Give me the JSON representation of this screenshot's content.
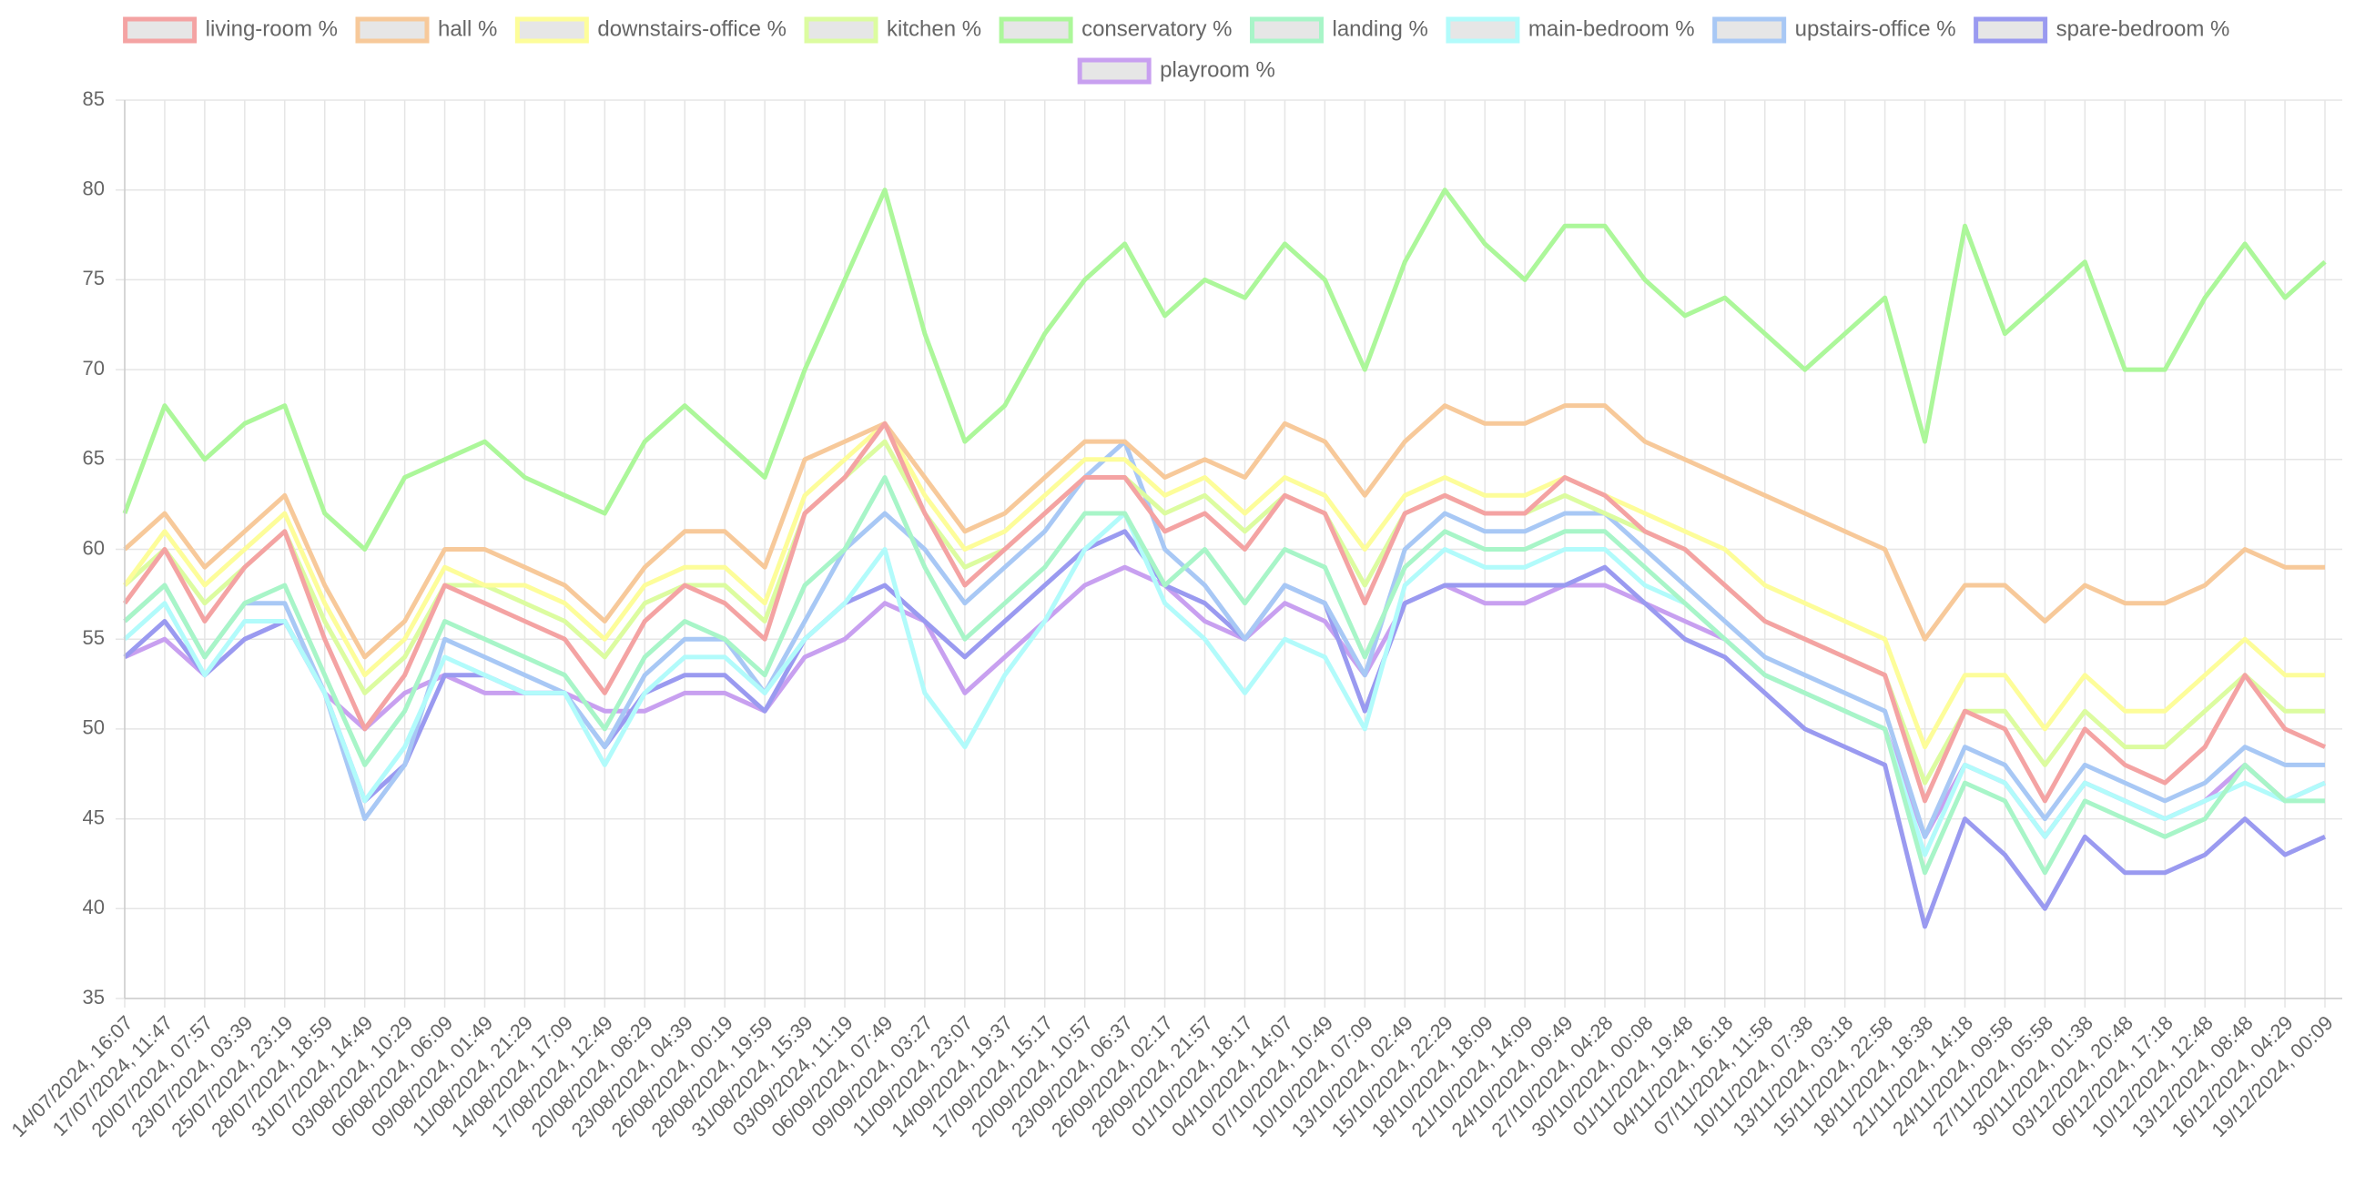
{
  "chart_data": {
    "type": "line",
    "categories": [
      "14/07/2024, 16:07",
      "17/07/2024, 11:47",
      "20/07/2024, 07:57",
      "23/07/2024, 03:39",
      "25/07/2024, 23:19",
      "28/07/2024, 18:59",
      "31/07/2024, 14:49",
      "03/08/2024, 10:29",
      "06/08/2024, 06:09",
      "09/08/2024, 01:49",
      "11/08/2024, 21:29",
      "14/08/2024, 17:09",
      "17/08/2024, 12:49",
      "20/08/2024, 08:29",
      "23/08/2024, 04:39",
      "26/08/2024, 00:19",
      "28/08/2024, 19:59",
      "31/08/2024, 15:39",
      "03/09/2024, 11:19",
      "06/09/2024, 07:49",
      "09/09/2024, 03:27",
      "11/09/2024, 23:07",
      "14/09/2024, 19:37",
      "17/09/2024, 15:17",
      "20/09/2024, 10:57",
      "23/09/2024, 06:37",
      "26/09/2024, 02:17",
      "28/09/2024, 21:57",
      "01/10/2024, 18:17",
      "04/10/2024, 14:07",
      "07/10/2024, 10:49",
      "10/10/2024, 07:09",
      "13/10/2024, 02:49",
      "15/10/2024, 22:29",
      "18/10/2024, 18:09",
      "21/10/2024, 14:09",
      "24/10/2024, 09:49",
      "27/10/2024, 04:28",
      "30/10/2024, 00:08",
      "01/11/2024, 19:48",
      "04/11/2024, 16:18",
      "07/11/2024, 11:58",
      "10/11/2024, 07:38",
      "13/11/2024, 03:18",
      "15/11/2024, 22:58",
      "18/11/2024, 18:38",
      "21/11/2024, 14:18",
      "24/11/2024, 09:58",
      "27/11/2024, 05:58",
      "30/11/2024, 01:38",
      "03/12/2024, 20:48",
      "06/12/2024, 17:18",
      "10/12/2024, 12:48",
      "13/12/2024, 08:48",
      "16/12/2024, 04:29",
      "19/12/2024, 00:09"
    ],
    "series": [
      {
        "name": "living-room %",
        "color": "#f4a3a3",
        "values": [
          57,
          60,
          56,
          59,
          61,
          55,
          50,
          53,
          58,
          57,
          56,
          55,
          52,
          56,
          58,
          57,
          55,
          62,
          64,
          67,
          62,
          58,
          60,
          62,
          64,
          64,
          61,
          62,
          60,
          63,
          62,
          57,
          62,
          63,
          62,
          62,
          64,
          63,
          61,
          60,
          58,
          56,
          55,
          54,
          53,
          46,
          51,
          50,
          46,
          50,
          48,
          47,
          49,
          53,
          50,
          49
        ]
      },
      {
        "name": "hall %",
        "color": "#f7c99a",
        "values": [
          60,
          62,
          59,
          61,
          63,
          58,
          54,
          56,
          60,
          60,
          59,
          58,
          56,
          59,
          61,
          61,
          59,
          65,
          66,
          67,
          64,
          61,
          62,
          64,
          66,
          66,
          64,
          65,
          64,
          67,
          66,
          63,
          66,
          68,
          67,
          67,
          68,
          68,
          66,
          65,
          64,
          63,
          62,
          61,
          60,
          55,
          58,
          58,
          56,
          58,
          57,
          57,
          58,
          60,
          59,
          59
        ]
      },
      {
        "name": "downstairs-office %",
        "color": "#fdfd9a",
        "values": [
          58,
          61,
          58,
          60,
          62,
          57,
          53,
          55,
          59,
          58,
          58,
          57,
          55,
          58,
          59,
          59,
          57,
          63,
          65,
          67,
          63,
          60,
          61,
          63,
          65,
          65,
          63,
          64,
          62,
          64,
          63,
          60,
          63,
          64,
          63,
          63,
          64,
          63,
          62,
          61,
          60,
          58,
          57,
          56,
          55,
          49,
          53,
          53,
          50,
          53,
          51,
          51,
          53,
          55,
          53,
          53
        ]
      },
      {
        "name": "kitchen %",
        "color": "#dcfca0",
        "values": [
          58,
          60,
          57,
          59,
          61,
          56,
          52,
          54,
          58,
          58,
          57,
          56,
          54,
          57,
          58,
          58,
          56,
          62,
          64,
          66,
          62,
          59,
          60,
          62,
          64,
          64,
          62,
          63,
          61,
          63,
          62,
          58,
          62,
          63,
          62,
          62,
          63,
          62,
          61,
          60,
          58,
          56,
          55,
          54,
          53,
          47,
          51,
          51,
          48,
          51,
          49,
          49,
          51,
          53,
          51,
          51
        ]
      },
      {
        "name": "conservatory %",
        "color": "#acf79a",
        "values": [
          62,
          68,
          65,
          67,
          68,
          62,
          60,
          64,
          65,
          66,
          64,
          63,
          62,
          66,
          68,
          66,
          64,
          70,
          75,
          80,
          72,
          66,
          68,
          72,
          75,
          77,
          73,
          75,
          74,
          77,
          75,
          70,
          76,
          80,
          77,
          75,
          78,
          78,
          75,
          73,
          74,
          72,
          70,
          72,
          74,
          66,
          78,
          72,
          74,
          76,
          70,
          70,
          74,
          77,
          74,
          76
        ]
      },
      {
        "name": "landing %",
        "color": "#a8f5c8",
        "values": [
          56,
          58,
          54,
          57,
          58,
          53,
          48,
          51,
          56,
          55,
          54,
          53,
          50,
          54,
          56,
          55,
          53,
          58,
          60,
          64,
          59,
          55,
          57,
          59,
          62,
          62,
          58,
          60,
          57,
          60,
          59,
          54,
          59,
          61,
          60,
          60,
          61,
          61,
          59,
          57,
          55,
          53,
          52,
          51,
          50,
          42,
          47,
          46,
          42,
          46,
          45,
          44,
          45,
          48,
          46,
          46
        ]
      },
      {
        "name": "main-bedroom %",
        "color": "#b2fbfb",
        "values": [
          55,
          57,
          53,
          56,
          56,
          52,
          46,
          49,
          54,
          53,
          52,
          52,
          48,
          52,
          54,
          54,
          52,
          55,
          57,
          60,
          52,
          49,
          53,
          56,
          60,
          62,
          57,
          55,
          52,
          55,
          54,
          50,
          58,
          60,
          59,
          59,
          60,
          60,
          58,
          57,
          55,
          53,
          52,
          51,
          50,
          43,
          48,
          47,
          44,
          47,
          46,
          45,
          46,
          47,
          46,
          47
        ]
      },
      {
        "name": "upstairs-office %",
        "color": "#a8c8f5",
        "values": [
          56,
          58,
          54,
          57,
          57,
          52,
          45,
          48,
          55,
          54,
          53,
          52,
          49,
          53,
          55,
          55,
          52,
          56,
          60,
          62,
          60,
          57,
          59,
          61,
          64,
          66,
          60,
          58,
          55,
          58,
          57,
          53,
          60,
          62,
          61,
          61,
          62,
          62,
          60,
          58,
          56,
          54,
          53,
          52,
          51,
          44,
          49,
          48,
          45,
          48,
          47,
          46,
          47,
          49,
          48,
          48
        ]
      },
      {
        "name": "spare-bedroom %",
        "color": "#9a9af0",
        "values": [
          54,
          56,
          53,
          55,
          56,
          52,
          46,
          48,
          53,
          53,
          52,
          52,
          49,
          52,
          53,
          53,
          51,
          55,
          57,
          58,
          56,
          54,
          56,
          58,
          60,
          61,
          58,
          57,
          55,
          58,
          57,
          51,
          57,
          58,
          58,
          58,
          58,
          59,
          57,
          55,
          54,
          52,
          50,
          49,
          48,
          39,
          45,
          43,
          40,
          44,
          42,
          42,
          43,
          45,
          43,
          44
        ]
      },
      {
        "name": "playroom %",
        "color": "#c8a0f0",
        "values": [
          54,
          55,
          53,
          55,
          56,
          52,
          50,
          52,
          53,
          52,
          52,
          52,
          51,
          51,
          52,
          52,
          51,
          54,
          55,
          57,
          56,
          52,
          54,
          56,
          58,
          59,
          58,
          56,
          55,
          57,
          56,
          53,
          57,
          58,
          57,
          57,
          58,
          58,
          57,
          56,
          55,
          53,
          52,
          51,
          50,
          44,
          48,
          47,
          44,
          47,
          46,
          45,
          46,
          48,
          46,
          47
        ]
      }
    ],
    "ylim": [
      35,
      85
    ],
    "yticks": [
      35,
      40,
      45,
      50,
      55,
      60,
      65,
      70,
      75,
      80,
      85
    ],
    "grid": true
  }
}
